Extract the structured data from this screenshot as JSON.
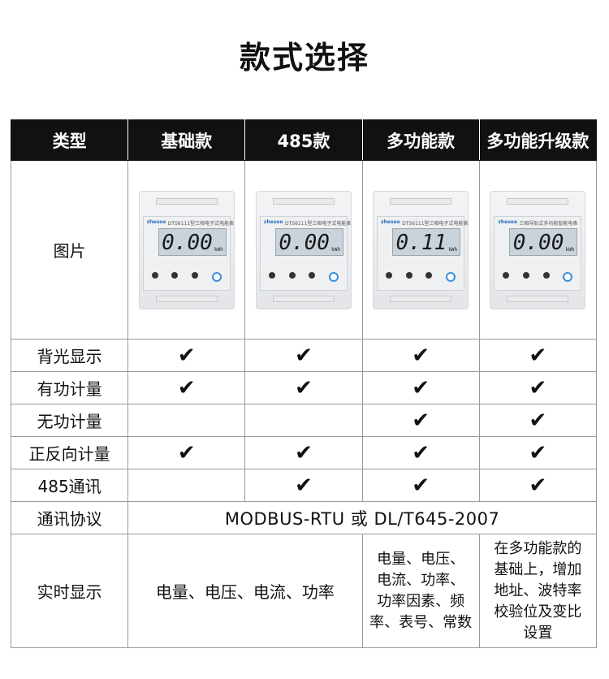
{
  "title": "款式选择",
  "headers": [
    "类型",
    "基础款",
    "485款",
    "多功能款",
    "多功能升级款"
  ],
  "image_row_label": "图片",
  "meters": [
    {
      "brand": "zhesee",
      "model": "DTS6111型三相电子式电能表",
      "reading": "0.00",
      "unit": "kWh"
    },
    {
      "brand": "zhesee",
      "model": "DTS6111型三相电子式电能表",
      "reading": "0.00",
      "unit": "kWh"
    },
    {
      "brand": "zhesee",
      "model": "DTS6111型三相电子式电能表",
      "reading": "0.11",
      "unit": "kWh"
    },
    {
      "brand": "zhesee",
      "model": "三相导轨式多功能智能电表",
      "reading": "0.00",
      "unit": "kWh"
    }
  ],
  "features": [
    {
      "label": "背光显示",
      "checks": [
        true,
        true,
        true,
        true
      ]
    },
    {
      "label": "有功计量",
      "checks": [
        true,
        true,
        true,
        true
      ]
    },
    {
      "label": "无功计量",
      "checks": [
        false,
        false,
        true,
        true
      ]
    },
    {
      "label": "正反向计量",
      "checks": [
        true,
        true,
        true,
        true
      ]
    },
    {
      "label": "485通讯",
      "checks": [
        false,
        true,
        true,
        true
      ]
    }
  ],
  "check_glyph": "✔",
  "protocol": {
    "label": "通讯协议",
    "value": "MODBUS-RTU 或 DL/T645-2007"
  },
  "realtime": {
    "label": "实时显示",
    "basic": "电量、电压、电流、功率",
    "multi": [
      "电量、电压、",
      "电流、功率、",
      "功率因素、频",
      "率、表号、常数"
    ],
    "upgrade": [
      "在多功能款的",
      "基础上，增加",
      "地址、波特率",
      "校验位及变比",
      "设置"
    ]
  }
}
